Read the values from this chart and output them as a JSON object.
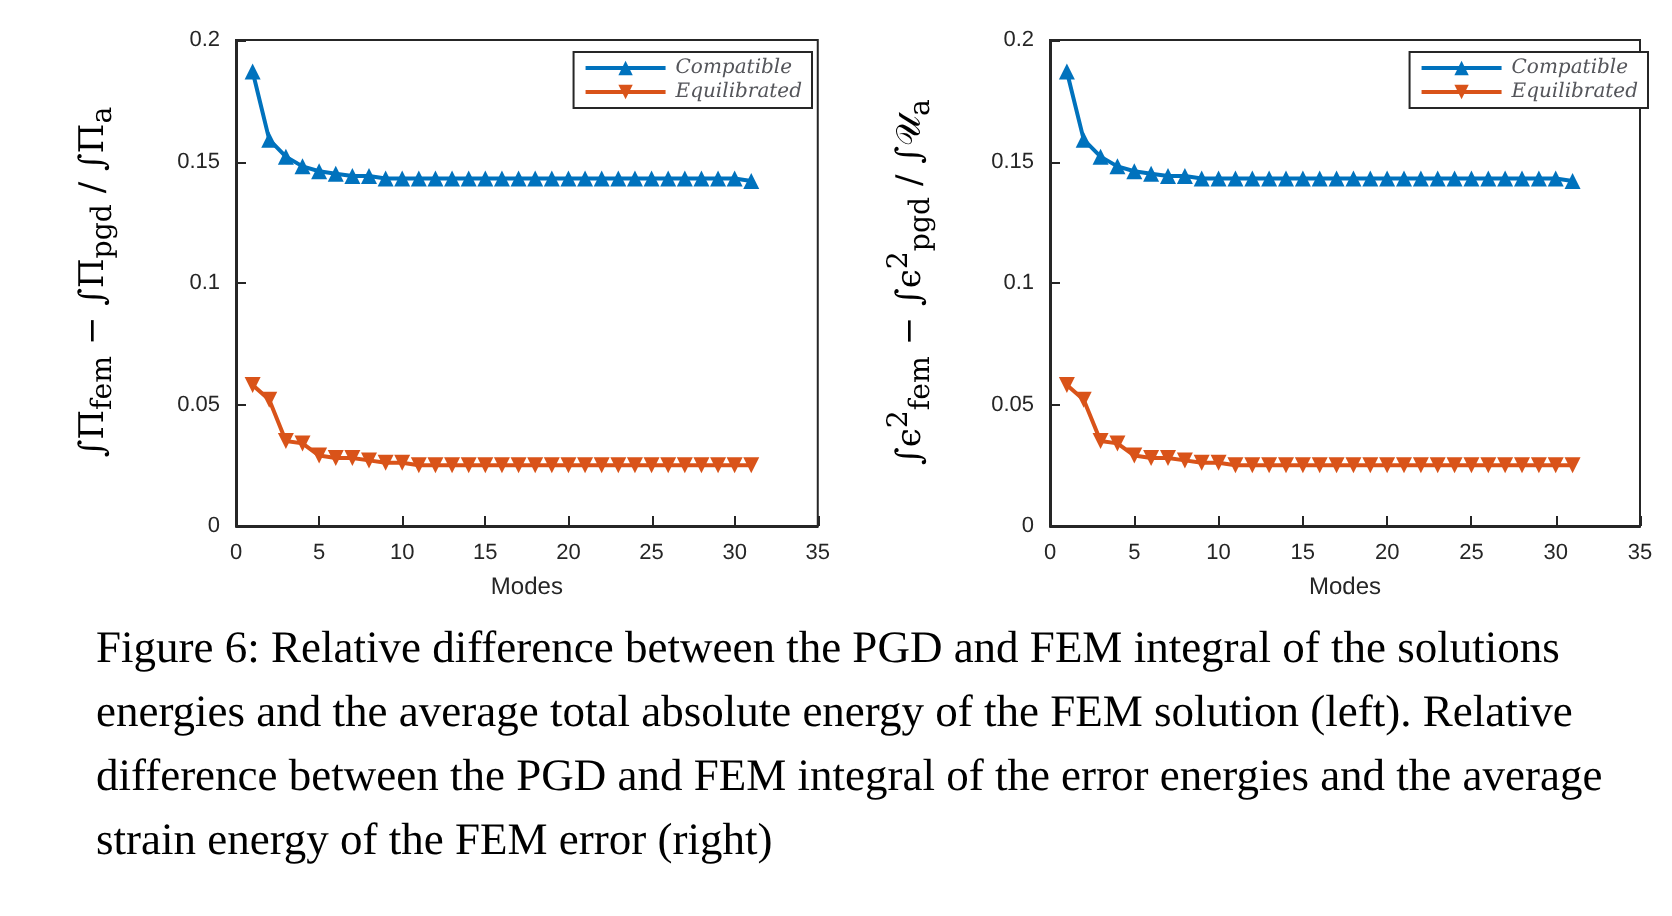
{
  "chart_data": [
    {
      "type": "line",
      "xlabel": "Modes",
      "ylabel": "∫Π$_{fem}$ − ∫Π$_{pgd}$ / ∫Π$_{a}$",
      "x": [
        1,
        2,
        3,
        4,
        5,
        6,
        7,
        8,
        9,
        10,
        11,
        12,
        13,
        14,
        15,
        16,
        17,
        18,
        19,
        20,
        21,
        22,
        23,
        24,
        25,
        26,
        27,
        28,
        29,
        30,
        31
      ],
      "series": [
        {
          "name": "Compatible",
          "color": "#0072bd",
          "marker": "triangle",
          "values": [
            0.187,
            0.159,
            0.152,
            0.148,
            0.146,
            0.145,
            0.144,
            0.144,
            0.143,
            0.143,
            0.143,
            0.143,
            0.143,
            0.143,
            0.143,
            0.143,
            0.143,
            0.143,
            0.143,
            0.143,
            0.143,
            0.143,
            0.143,
            0.143,
            0.143,
            0.143,
            0.143,
            0.143,
            0.143,
            0.143,
            0.142
          ]
        },
        {
          "name": "Equilibrated",
          "color": "#d95319",
          "marker": "triangle-down",
          "values": [
            0.058,
            0.052,
            0.035,
            0.034,
            0.029,
            0.028,
            0.028,
            0.027,
            0.026,
            0.026,
            0.025,
            0.025,
            0.025,
            0.025,
            0.025,
            0.025,
            0.025,
            0.025,
            0.025,
            0.025,
            0.025,
            0.025,
            0.025,
            0.025,
            0.025,
            0.025,
            0.025,
            0.025,
            0.025,
            0.025,
            0.025
          ]
        }
      ],
      "xlim": [
        0,
        35
      ],
      "xticks": [
        0,
        5,
        10,
        15,
        20,
        25,
        30,
        35
      ],
      "ylim": [
        0,
        0.2
      ],
      "yticks": [
        0,
        0.05,
        0.1,
        0.15,
        0.2
      ],
      "grid": false,
      "legend": "top right"
    },
    {
      "type": "line",
      "xlabel": "Modes",
      "ylabel": "∫ϵ$^{2}$$_{fem}$ − ∫ϵ$^{2}$$_{pgd}$ / ∫𝒰$_{a}$",
      "x": [
        1,
        2,
        3,
        4,
        5,
        6,
        7,
        8,
        9,
        10,
        11,
        12,
        13,
        14,
        15,
        16,
        17,
        18,
        19,
        20,
        21,
        22,
        23,
        24,
        25,
        26,
        27,
        28,
        29,
        30,
        31
      ],
      "series": [
        {
          "name": "Compatible",
          "color": "#0072bd",
          "marker": "triangle",
          "values": [
            0.187,
            0.159,
            0.152,
            0.148,
            0.146,
            0.145,
            0.144,
            0.144,
            0.143,
            0.143,
            0.143,
            0.143,
            0.143,
            0.143,
            0.143,
            0.143,
            0.143,
            0.143,
            0.143,
            0.143,
            0.143,
            0.143,
            0.143,
            0.143,
            0.143,
            0.143,
            0.143,
            0.143,
            0.143,
            0.143,
            0.142
          ]
        },
        {
          "name": "Equilibrated",
          "color": "#d95319",
          "marker": "triangle-down",
          "values": [
            0.058,
            0.052,
            0.035,
            0.034,
            0.029,
            0.028,
            0.028,
            0.027,
            0.026,
            0.026,
            0.025,
            0.025,
            0.025,
            0.025,
            0.025,
            0.025,
            0.025,
            0.025,
            0.025,
            0.025,
            0.025,
            0.025,
            0.025,
            0.025,
            0.025,
            0.025,
            0.025,
            0.025,
            0.025,
            0.025,
            0.025
          ]
        }
      ],
      "xlim": [
        0,
        35
      ],
      "xticks": [
        0,
        5,
        10,
        15,
        20,
        25,
        30,
        35
      ],
      "ylim": [
        0,
        0.2
      ],
      "yticks": [
        0,
        0.05,
        0.1,
        0.15,
        0.2
      ],
      "grid": false,
      "legend": "top right",
      "annotations": [
        "Figure 6: Relative difference between the PGD and FEM integral of the solutions energies and the average total absolute energy of the FEM solution (left). Relative difference between the PGD and FEM integral of the error energies and the average strain energy of the FEM error (right)"
      ]
    }
  ]
}
